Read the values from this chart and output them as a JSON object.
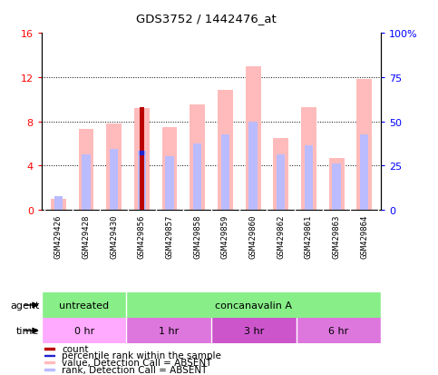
{
  "title": "GDS3752 / 1442476_at",
  "samples": [
    "GSM429426",
    "GSM429428",
    "GSM429430",
    "GSM429856",
    "GSM429857",
    "GSM429858",
    "GSM429859",
    "GSM429860",
    "GSM429862",
    "GSM429861",
    "GSM429863",
    "GSM429864"
  ],
  "value_absent": [
    1.0,
    7.3,
    7.8,
    9.2,
    7.5,
    9.5,
    10.8,
    13.0,
    6.5,
    9.3,
    4.7,
    11.8
  ],
  "rank_absent": [
    1.2,
    5.0,
    5.5,
    5.3,
    4.8,
    6.0,
    6.8,
    8.0,
    5.0,
    5.8,
    4.2,
    6.8
  ],
  "count": [
    0.0,
    0.0,
    0.0,
    9.3,
    0.0,
    0.0,
    0.0,
    0.0,
    0.0,
    0.0,
    0.0,
    0.0
  ],
  "percentile": [
    0.0,
    0.0,
    0.0,
    5.2,
    0.0,
    0.0,
    0.0,
    0.0,
    0.0,
    0.0,
    0.0,
    0.0
  ],
  "count_color": "#bb0000",
  "percentile_color": "#2222cc",
  "value_absent_color": "#ffbbbb",
  "rank_absent_color": "#bbbbff",
  "ylim_left": [
    0,
    16
  ],
  "ylim_right": [
    0,
    100
  ],
  "yticks_left": [
    0,
    4,
    8,
    12,
    16
  ],
  "ytick_labels_left": [
    "0",
    "4",
    "8",
    "12",
    "16"
  ],
  "ytick_labels_right": [
    "0",
    "25",
    "50",
    "75",
    "100%"
  ],
  "agent_untreated_color": "#88ee88",
  "agent_conc_color": "#88ee88",
  "time_0hr_color": "#ffaaff",
  "time_1hr_color": "#dd77dd",
  "time_3hr_color": "#cc55cc",
  "time_6hr_color": "#dd77dd",
  "gray_bg": "#c8c8c8",
  "bar_width": 0.55
}
